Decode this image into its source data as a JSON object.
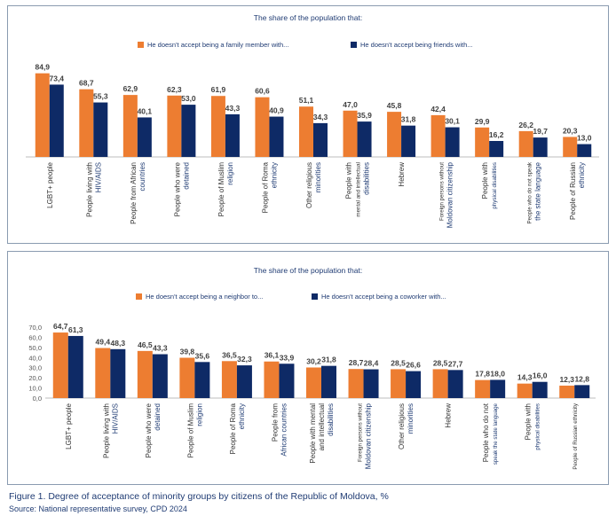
{
  "caption": "Figure 1. Degree of acceptance of minority groups by citizens of the Republic of Moldova, %",
  "source": "Source: National representative survey, CPD 2024",
  "colors": {
    "orange": "#ED7D31",
    "navy": "#0E2A66"
  },
  "chart_data": [
    {
      "type": "bar",
      "title": "The share of the population that:",
      "series": [
        {
          "name": "He doesn't accept being a family member with...",
          "values": [
            84.9,
            68.7,
            62.9,
            62.3,
            61.9,
            60.6,
            51.1,
            47.0,
            45.8,
            42.4,
            29.9,
            26.2,
            20.3
          ]
        },
        {
          "name": "He doesn't accept being friends with...",
          "values": [
            73.4,
            55.3,
            40.1,
            53.0,
            43.3,
            40.9,
            34.3,
            35.9,
            31.8,
            30.1,
            16.2,
            19.7,
            13.0
          ]
        }
      ],
      "value_labels": [
        [
          "84,9",
          "68,7",
          "62,9",
          "62,3",
          "61,9",
          "60,6",
          "51,1",
          "47,0",
          "45,8",
          "42,4",
          "29,9",
          "26,2",
          "20,3"
        ],
        [
          "73,4",
          "55,3",
          "40,1",
          "53,0",
          "43,3",
          "40,9",
          "34,3",
          "35,9",
          "31,8",
          "30,1",
          "16,2",
          "19,7",
          "13,0"
        ]
      ],
      "categories": [
        [
          "LGBT+ people"
        ],
        [
          "People living with",
          "HIV/AIDS"
        ],
        [
          "People from African",
          "countries"
        ],
        [
          "People who were",
          "detained"
        ],
        [
          "People of Muslim",
          "religion"
        ],
        [
          "People of Roma",
          "ethnicity"
        ],
        [
          "Other religious",
          "minorities"
        ],
        [
          "People with",
          "mental and intellectual",
          "disabilities"
        ],
        [
          "Hebrew"
        ],
        [
          "Foreign persons without",
          "Moldovan citizenship"
        ],
        [
          "People with",
          "physical disabilities"
        ],
        [
          "People who do not speak",
          "the state language"
        ],
        [
          "People of Russian",
          "ethnicity"
        ]
      ],
      "ylim": [
        0,
        90
      ],
      "legend": "top",
      "grid": false
    },
    {
      "type": "bar",
      "title": "The share of the population that:",
      "series": [
        {
          "name": "He doesn't accept being a neighbor to...",
          "values": [
            64.7,
            49.4,
            46.5,
            39.8,
            36.5,
            36.1,
            30.2,
            28.7,
            28.5,
            28.5,
            17.8,
            14.3,
            12.3
          ]
        },
        {
          "name": "He doesn't accept being a coworker with...",
          "values": [
            61.3,
            48.3,
            43.3,
            35.6,
            32.3,
            33.9,
            31.8,
            28.4,
            26.6,
            27.7,
            18.0,
            16.0,
            12.8
          ]
        }
      ],
      "value_labels": [
        [
          "64,7",
          "49,4",
          "46,5",
          "39,8",
          "36,5",
          "36,1",
          "30,2",
          "28,7",
          "28,5",
          "28,5",
          "17,8",
          "14,3",
          "12,3"
        ],
        [
          "61,3",
          "48,3",
          "43,3",
          "35,6",
          "32,3",
          "33,9",
          "31,8",
          "28,4",
          "26,6",
          "27,7",
          "18,0",
          "16,0",
          "12,8"
        ]
      ],
      "categories": [
        [
          "LGBT+ people"
        ],
        [
          "People living with",
          "HIV/AIDS"
        ],
        [
          "People who were",
          "detained"
        ],
        [
          "People of Muslim",
          "religion"
        ],
        [
          "People of Roma",
          "ethnicity"
        ],
        [
          "People from",
          "African countries"
        ],
        [
          "People with mental",
          "and intellectual",
          "disabilities"
        ],
        [
          "Foreign persons without",
          "Moldovan citizenship"
        ],
        [
          "Other religious",
          "minorities"
        ],
        [
          "Hebrew"
        ],
        [
          "People who do not",
          "speak the state language"
        ],
        [
          "People with",
          "physical disabilities"
        ],
        [
          "People of Russian ethnicity"
        ]
      ],
      "yticks": [
        "0,0",
        "10,0",
        "20,0",
        "30,0",
        "40,0",
        "50,0",
        "60,0",
        "70,0"
      ],
      "ylim": [
        0,
        70
      ],
      "legend": "top",
      "grid": false
    }
  ]
}
